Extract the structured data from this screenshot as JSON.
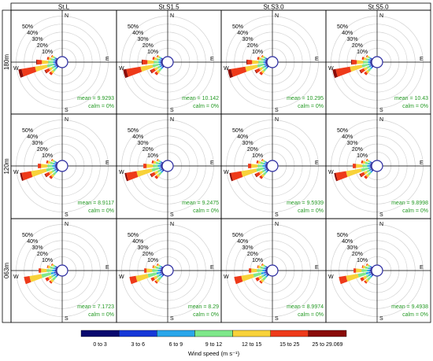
{
  "colors": {
    "bins": [
      "#08086e",
      "#1638d8",
      "#2aa6ea",
      "#7ee88a",
      "#f8d23a",
      "#ee3a1a",
      "#8a0c08"
    ],
    "stats_text": "#249a24",
    "axis": "#000000",
    "ring": "#d2d2d2"
  },
  "chart_data": {
    "type": "windrose",
    "column_titles": [
      "St.L",
      "St.S1.5",
      "St.S3.0",
      "St.S5.0"
    ],
    "row_labels": [
      "180m",
      "120m",
      "063m"
    ],
    "directions": [
      "N",
      "E",
      "S",
      "W"
    ],
    "ring_labels": [
      "50%",
      "40%",
      "30%",
      "20%",
      "10%"
    ],
    "ring_percent_values": [
      10,
      20,
      30,
      40,
      50
    ],
    "sector_angles_deg": [
      225,
      240,
      255,
      270,
      285,
      300
    ],
    "legend": {
      "title": "Wind speed (m s⁻¹)",
      "bins": [
        "0 to 3",
        "3 to 6",
        "6 to 9",
        "9 to 12",
        "12 to 15",
        "15 to 25",
        "25 to 29.069"
      ]
    },
    "panels": [
      {
        "row": "180m",
        "column": "St.L",
        "mean": "mean = 9.9293",
        "calm": "calm = 0%",
        "sectors": [
          [
            1,
            1,
            2,
            4,
            3,
            3,
            0
          ],
          [
            1,
            1,
            2,
            3,
            4,
            5,
            1
          ],
          [
            1,
            1,
            2,
            8,
            15,
            17,
            4
          ],
          [
            1,
            1,
            2,
            6,
            8,
            6,
            1
          ],
          [
            1,
            1,
            2,
            3,
            3,
            2,
            0
          ],
          [
            1,
            1,
            1,
            2,
            2,
            1,
            0
          ]
        ]
      },
      {
        "row": "180m",
        "column": "St.S1.5",
        "mean": "mean = 10.142",
        "calm": "calm = 0%",
        "sectors": [
          [
            1,
            1,
            2,
            4,
            3,
            3,
            0
          ],
          [
            1,
            1,
            2,
            3,
            4,
            5,
            1
          ],
          [
            1,
            1,
            2,
            8,
            15,
            18,
            4
          ],
          [
            1,
            1,
            2,
            6,
            8,
            6,
            1
          ],
          [
            1,
            1,
            2,
            3,
            3,
            2,
            0
          ],
          [
            1,
            1,
            1,
            2,
            2,
            1,
            0
          ]
        ]
      },
      {
        "row": "180m",
        "column": "St.S3.0",
        "mean": "mean = 10.295",
        "calm": "calm = 0%",
        "sectors": [
          [
            1,
            1,
            2,
            4,
            3,
            3,
            0
          ],
          [
            1,
            1,
            2,
            3,
            4,
            5,
            1
          ],
          [
            1,
            1,
            2,
            8,
            15,
            18,
            4
          ],
          [
            1,
            1,
            2,
            6,
            8,
            6,
            1
          ],
          [
            1,
            1,
            2,
            3,
            3,
            2,
            0
          ],
          [
            1,
            1,
            1,
            2,
            2,
            1,
            0
          ]
        ]
      },
      {
        "row": "180m",
        "column": "St.S5.0",
        "mean": "mean = 10.43",
        "calm": "calm = 0%",
        "sectors": [
          [
            1,
            1,
            2,
            4,
            3,
            3,
            0
          ],
          [
            1,
            1,
            2,
            3,
            4,
            5,
            1
          ],
          [
            1,
            1,
            2,
            8,
            15,
            18,
            4
          ],
          [
            1,
            1,
            2,
            6,
            8,
            6,
            1
          ],
          [
            1,
            1,
            2,
            3,
            3,
            2,
            0
          ],
          [
            1,
            1,
            1,
            2,
            2,
            1,
            0
          ]
        ]
      },
      {
        "row": "120m",
        "column": "St.L",
        "mean": "mean = 8.9117",
        "calm": "calm = 0%",
        "sectors": [
          [
            1,
            1,
            2,
            4,
            3,
            3,
            0
          ],
          [
            1,
            1,
            2,
            3,
            4,
            5,
            1
          ],
          [
            1,
            1,
            2,
            9,
            19,
            12,
            2
          ],
          [
            1,
            1,
            3,
            6,
            8,
            4,
            0
          ],
          [
            1,
            1,
            2,
            4,
            3,
            2,
            0
          ],
          [
            1,
            1,
            1,
            2,
            2,
            1,
            0
          ]
        ]
      },
      {
        "row": "120m",
        "column": "St.S1.5",
        "mean": "mean = 9.2475",
        "calm": "calm = 0%",
        "sectors": [
          [
            1,
            1,
            2,
            4,
            3,
            3,
            0
          ],
          [
            1,
            1,
            2,
            3,
            4,
            5,
            1
          ],
          [
            1,
            1,
            2,
            9,
            19,
            13,
            2
          ],
          [
            1,
            1,
            3,
            6,
            8,
            4,
            0
          ],
          [
            1,
            1,
            2,
            4,
            3,
            2,
            0
          ],
          [
            1,
            1,
            1,
            2,
            2,
            1,
            0
          ]
        ]
      },
      {
        "row": "120m",
        "column": "St.S3.0",
        "mean": "mean = 9.5939",
        "calm": "calm = 0%",
        "sectors": [
          [
            1,
            1,
            2,
            4,
            3,
            3,
            0
          ],
          [
            1,
            1,
            2,
            3,
            4,
            5,
            1
          ],
          [
            1,
            1,
            2,
            9,
            19,
            13,
            2
          ],
          [
            1,
            1,
            3,
            6,
            8,
            4,
            0
          ],
          [
            1,
            1,
            2,
            4,
            3,
            2,
            0
          ],
          [
            1,
            1,
            1,
            2,
            2,
            1,
            0
          ]
        ]
      },
      {
        "row": "120m",
        "column": "St.S5.0",
        "mean": "mean = 9.8998",
        "calm": "calm = 0%",
        "sectors": [
          [
            1,
            1,
            2,
            4,
            3,
            3,
            0
          ],
          [
            1,
            1,
            2,
            3,
            4,
            5,
            1
          ],
          [
            1,
            1,
            2,
            9,
            19,
            13,
            2
          ],
          [
            1,
            1,
            3,
            6,
            8,
            4,
            0
          ],
          [
            1,
            1,
            2,
            4,
            3,
            2,
            0
          ],
          [
            1,
            1,
            1,
            2,
            2,
            1,
            0
          ]
        ]
      },
      {
        "row": "063m",
        "column": "St.L",
        "mean": "mean = 7.1723",
        "calm": "calm = 0%",
        "sectors": [
          [
            1,
            1,
            2,
            5,
            3,
            2,
            0
          ],
          [
            1,
            1,
            3,
            3,
            4,
            4,
            0
          ],
          [
            1,
            2,
            4,
            12,
            15,
            7,
            0
          ],
          [
            1,
            1,
            3,
            7,
            7,
            3,
            0
          ],
          [
            1,
            1,
            2,
            4,
            3,
            1,
            0
          ],
          [
            1,
            1,
            1,
            2,
            2,
            1,
            0
          ]
        ]
      },
      {
        "row": "063m",
        "column": "St.S1.5",
        "mean": "mean = 8.29",
        "calm": "calm = 0%",
        "sectors": [
          [
            1,
            1,
            2,
            5,
            3,
            2,
            0
          ],
          [
            1,
            1,
            3,
            3,
            4,
            4,
            0
          ],
          [
            1,
            2,
            4,
            11,
            15,
            8,
            0
          ],
          [
            1,
            1,
            3,
            7,
            7,
            3,
            0
          ],
          [
            1,
            1,
            2,
            4,
            3,
            1,
            0
          ],
          [
            1,
            1,
            1,
            2,
            2,
            1,
            0
          ]
        ]
      },
      {
        "row": "063m",
        "column": "St.S3.0",
        "mean": "mean = 8.9974",
        "calm": "calm = 0%",
        "sectors": [
          [
            1,
            1,
            2,
            5,
            3,
            2,
            0
          ],
          [
            1,
            1,
            3,
            3,
            4,
            4,
            0
          ],
          [
            1,
            2,
            4,
            10,
            15,
            9,
            0
          ],
          [
            1,
            1,
            3,
            7,
            7,
            3,
            0
          ],
          [
            1,
            1,
            2,
            4,
            3,
            1,
            0
          ],
          [
            1,
            1,
            1,
            2,
            2,
            1,
            0
          ]
        ]
      },
      {
        "row": "063m",
        "column": "St.S5.0",
        "mean": "mean = 9.4938",
        "calm": "calm = 0%",
        "sectors": [
          [
            1,
            1,
            2,
            5,
            3,
            2,
            0
          ],
          [
            1,
            1,
            3,
            3,
            4,
            4,
            0
          ],
          [
            1,
            2,
            4,
            10,
            15,
            9,
            0
          ],
          [
            1,
            1,
            3,
            7,
            7,
            3,
            0
          ],
          [
            1,
            1,
            2,
            4,
            3,
            1,
            0
          ],
          [
            1,
            1,
            1,
            2,
            2,
            1,
            0
          ]
        ]
      }
    ]
  }
}
